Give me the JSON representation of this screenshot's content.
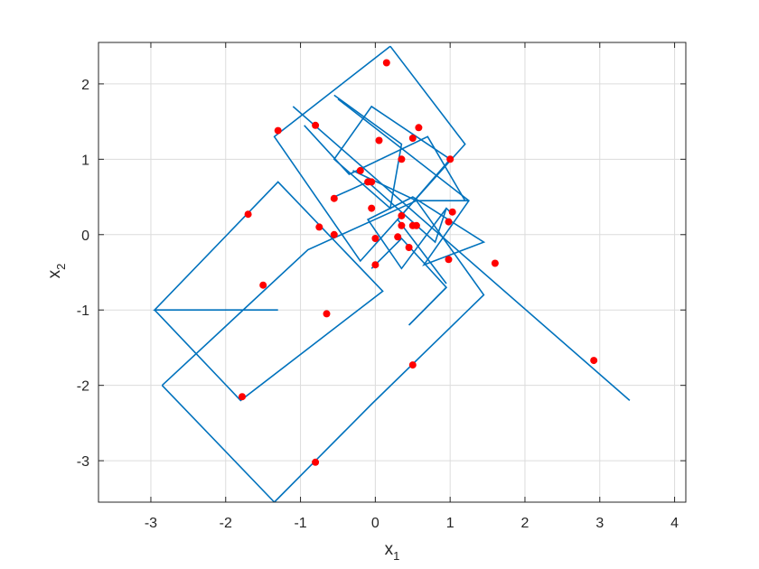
{
  "chart_data": {
    "type": "line",
    "xlabel": "x",
    "xlabel_sub": "1",
    "ylabel": "x",
    "ylabel_sub": "2",
    "xlim": [
      -3.7,
      4.15
    ],
    "ylim": [
      -3.55,
      2.55
    ],
    "xticks": [
      -3,
      -2,
      -1,
      0,
      1,
      2,
      3,
      4
    ],
    "yticks": [
      -3,
      -2,
      -1,
      0,
      1,
      2
    ],
    "grid": true,
    "line_color": "#0072BD",
    "marker_color": "#FF0000",
    "series": [
      {
        "type": "line",
        "segments": [
          [
            [
              -0.05,
              -0.45
            ],
            [
              0.35,
              -0.05
            ],
            [
              0.95,
              -0.7
            ],
            [
              0.45,
              -1.2
            ]
          ],
          [
            [
              0.45,
              -1.2
            ],
            [
              0.95,
              -0.7
            ]
          ]
        ],
        "polylines": [
          [
            [
              0.2,
              2.5
            ],
            [
              1.2,
              1.2
            ],
            [
              -0.2,
              -0.35
            ],
            [
              -1.35,
              1.3
            ],
            [
              0.2,
              2.5
            ]
          ],
          [
            [
              -1.3,
              -1.0
            ],
            [
              -2.95,
              -1.0
            ],
            [
              -1.3,
              0.7
            ],
            [
              0.1,
              -0.75
            ],
            [
              -1.8,
              -2.2
            ],
            [
              -2.95,
              -1.0
            ]
          ],
          [
            [
              -2.85,
              -2.0
            ],
            [
              -1.35,
              -3.55
            ]
          ],
          [
            [
              -2.85,
              -2.0
            ],
            [
              -0.9,
              -0.2
            ],
            [
              0.55,
              0.45
            ],
            [
              1.45,
              -0.8
            ],
            [
              -0.05,
              -2.25
            ],
            [
              -1.35,
              -3.55
            ]
          ],
          [
            [
              -1.1,
              1.7
            ],
            [
              3.4,
              -2.2
            ]
          ],
          [
            [
              -0.55,
              1.85
            ],
            [
              0.35,
              1.2
            ],
            [
              0.2,
              0.35
            ],
            [
              -0.55,
              1.0
            ],
            [
              -0.05,
              1.7
            ],
            [
              1.0,
              1.0
            ],
            [
              0.3,
              0.2
            ],
            [
              0.95,
              -0.65
            ],
            [
              0.3,
              0.2
            ]
          ],
          [
            [
              -0.5,
              1.8
            ],
            [
              1.25,
              0.45
            ],
            [
              0.65,
              -0.4
            ],
            [
              1.45,
              -0.1
            ],
            [
              0.5,
              0.5
            ],
            [
              -0.1,
              0.2
            ],
            [
              0.35,
              -0.45
            ],
            [
              0.95,
              0.35
            ],
            [
              1.0,
              0.3
            ]
          ],
          [
            [
              -0.3,
              0.85
            ],
            [
              0.55,
              0.45
            ],
            [
              1.25,
              0.45
            ]
          ],
          [
            [
              -0.95,
              1.45
            ],
            [
              -0.35,
              0.8
            ],
            [
              0.7,
              1.3
            ],
            [
              1.2,
              0.45
            ]
          ],
          [
            [
              -0.55,
              0.5
            ],
            [
              -0.1,
              0.7
            ],
            [
              0.8,
              -0.1
            ],
            [
              0.95,
              0.35
            ]
          ]
        ]
      },
      {
        "type": "scatter",
        "points": [
          [
            0.15,
            2.28
          ],
          [
            -1.3,
            1.38
          ],
          [
            -0.8,
            1.45
          ],
          [
            0.58,
            1.42
          ],
          [
            0.05,
            1.25
          ],
          [
            0.5,
            1.28
          ],
          [
            0.35,
            1.0
          ],
          [
            1.0,
            1.0
          ],
          [
            -0.2,
            0.85
          ],
          [
            -0.1,
            0.7
          ],
          [
            -0.05,
            0.7
          ],
          [
            -0.55,
            0.48
          ],
          [
            -0.05,
            0.35
          ],
          [
            0.35,
            0.25
          ],
          [
            1.03,
            0.3
          ],
          [
            0.35,
            0.12
          ],
          [
            0.5,
            0.12
          ],
          [
            0.55,
            0.12
          ],
          [
            0.98,
            0.17
          ],
          [
            -1.7,
            0.27
          ],
          [
            -0.75,
            0.1
          ],
          [
            -0.55,
            0.0
          ],
          [
            0.3,
            -0.03
          ],
          [
            0.0,
            -0.05
          ],
          [
            0.45,
            -0.17
          ],
          [
            0.98,
            -0.33
          ],
          [
            1.6,
            -0.38
          ],
          [
            0.0,
            -0.4
          ],
          [
            -1.5,
            -0.67
          ],
          [
            -0.65,
            -1.05
          ],
          [
            2.92,
            -1.67
          ],
          [
            0.5,
            -1.73
          ],
          [
            -1.78,
            -2.15
          ],
          [
            -0.8,
            -3.02
          ]
        ]
      }
    ]
  }
}
